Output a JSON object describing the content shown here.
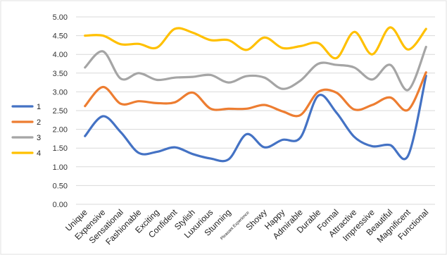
{
  "chart_data": {
    "type": "line",
    "categories": [
      "Unique",
      "Expensive",
      "Sensational",
      "Fashionable",
      "Exciting",
      "Confident",
      "Stylish",
      "Luxurious",
      "Stunning",
      "Pleasant Experience",
      "Showy",
      "Happy",
      "Admirable",
      "Durable",
      "Formal",
      "Attractive",
      "Impressive",
      "Beautiful",
      "Magnificent",
      "Functional"
    ],
    "yticks": [
      "0.00",
      "0.50",
      "1.00",
      "1.50",
      "2.00",
      "2.50",
      "3.00",
      "3.50",
      "4.00",
      "4.50",
      "5.00"
    ],
    "ylim": [
      0,
      5
    ],
    "grid": true,
    "legend_position": "left",
    "series": [
      {
        "name": "1",
        "color": "#4472c4",
        "values": [
          1.82,
          2.35,
          1.92,
          1.37,
          1.4,
          1.52,
          1.34,
          1.22,
          1.2,
          1.87,
          1.52,
          1.72,
          1.78,
          2.9,
          2.45,
          1.8,
          1.55,
          1.58,
          1.3,
          3.43
        ]
      },
      {
        "name": "2",
        "color": "#ed7d31",
        "values": [
          2.62,
          3.13,
          2.68,
          2.75,
          2.7,
          2.72,
          2.98,
          2.55,
          2.55,
          2.55,
          2.65,
          2.48,
          2.38,
          3.0,
          2.98,
          2.53,
          2.65,
          2.85,
          2.52,
          3.52
        ]
      },
      {
        "name": "3",
        "color": "#a5a5a5",
        "values": [
          3.65,
          4.08,
          3.35,
          3.5,
          3.32,
          3.38,
          3.4,
          3.45,
          3.25,
          3.42,
          3.38,
          3.08,
          3.3,
          3.75,
          3.72,
          3.65,
          3.33,
          3.72,
          3.05,
          4.2
        ]
      },
      {
        "name": "4",
        "color": "#ffc000",
        "values": [
          4.5,
          4.5,
          4.27,
          4.28,
          4.18,
          4.68,
          4.58,
          4.38,
          4.38,
          4.12,
          4.45,
          4.17,
          4.22,
          4.3,
          3.9,
          4.6,
          4.0,
          4.72,
          4.13,
          4.68
        ]
      }
    ]
  }
}
